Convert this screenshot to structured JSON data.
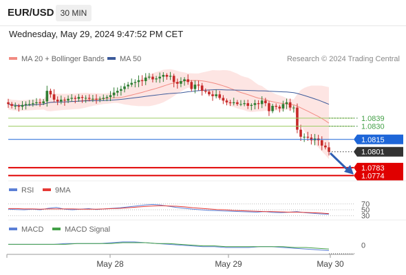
{
  "header": {
    "symbol": "EUR/USD",
    "timeframe": "30 MIN",
    "timestamp": "Wednesday, May 29, 2024 9:47:52 PM CET"
  },
  "price_legend": [
    {
      "label": "MA 20 + Bollinger Bands",
      "color": "#f28b82"
    },
    {
      "label": "MA 50",
      "color": "#3c5a9a"
    }
  ],
  "credit": "Research © 2024 Trading Central",
  "rsi_legend": [
    {
      "label": "RSI",
      "color": "#5b7fd6"
    },
    {
      "label": "9MA",
      "color": "#e53935"
    }
  ],
  "macd_legend": [
    {
      "label": "MACD",
      "color": "#5b7fd6"
    },
    {
      "label": "MACD Signal",
      "color": "#43a047"
    }
  ],
  "chart_data": [
    {
      "type": "candlestick",
      "title": "EUR/USD",
      "x_ticks": [
        "May 28",
        "May 29",
        "May 30"
      ],
      "ylim": [
        1.0772,
        1.0895
      ],
      "ma20_bollinger": "band + midline",
      "ma50": "line",
      "closes": [
        1.0855,
        1.0853,
        1.0853,
        1.0852,
        1.0854,
        1.0855,
        1.0855,
        1.0856,
        1.0857,
        1.0856,
        1.0858,
        1.087,
        1.0866,
        1.086,
        1.0858,
        1.086,
        1.0859,
        1.0861,
        1.0862,
        1.0861,
        1.0863,
        1.0862,
        1.0862,
        1.0861,
        1.0861,
        1.086,
        1.0861,
        1.0862,
        1.0863,
        1.0865,
        1.0868,
        1.087,
        1.0872,
        1.0875,
        1.0877,
        1.0879,
        1.088,
        1.0882,
        1.0881,
        1.0885,
        1.0886,
        1.0883,
        1.0884,
        1.0886,
        1.0888,
        1.0886,
        1.0887,
        1.088,
        1.0878,
        1.0881,
        1.0883,
        1.088,
        1.0872,
        1.0877,
        1.0876,
        1.087,
        1.0869,
        1.0866,
        1.0864,
        1.0866,
        1.0862,
        1.0859,
        1.0857,
        1.0856,
        1.0857,
        1.0855,
        1.0855,
        1.0856,
        1.0853,
        1.0854,
        1.0856,
        1.0855,
        1.0859,
        1.0856,
        1.0847,
        1.0853,
        1.0852,
        1.085,
        1.0855,
        1.0857,
        1.0851,
        1.0851,
        1.0826,
        1.0818,
        1.0818,
        1.0817,
        1.0814,
        1.0816,
        1.0814,
        1.0808,
        1.0806,
        1.0801
      ],
      "price_levels": [
        {
          "value": 1.0839,
          "label": "1.0839",
          "kind": "resistance"
        },
        {
          "value": 1.083,
          "label": "1.0830",
          "kind": "resistance"
        },
        {
          "value": 1.0815,
          "label": "1.0815",
          "kind": "pivot"
        },
        {
          "value": 1.0801,
          "label": "1.0801",
          "kind": "last"
        },
        {
          "value": 1.0783,
          "label": "1.0783",
          "kind": "target"
        },
        {
          "value": 1.0774,
          "label": "1.0774",
          "kind": "target"
        }
      ],
      "projection": "arrow down toward 1.0783"
    },
    {
      "type": "line",
      "title": "RSI",
      "reference_levels": [
        "70",
        "50",
        "30"
      ],
      "ylim": [
        20,
        90
      ],
      "series": [
        {
          "name": "RSI",
          "values": [
            52,
            51,
            50,
            52,
            50,
            55,
            58,
            52,
            50,
            52,
            54,
            51,
            53,
            55,
            57,
            60,
            63,
            66,
            68,
            66,
            62,
            58,
            55,
            52,
            50,
            48,
            47,
            46,
            45,
            44,
            43,
            42,
            44,
            41,
            40,
            42,
            44,
            40,
            38,
            36,
            35
          ]
        },
        {
          "name": "9MA",
          "values": [
            54,
            54,
            53,
            53,
            52,
            53,
            53,
            53,
            53,
            52,
            52,
            52,
            53,
            54,
            55,
            57,
            59,
            61,
            63,
            64,
            63,
            62,
            60,
            57,
            55,
            53,
            51,
            50,
            48,
            47,
            46,
            45,
            44,
            44,
            43,
            42,
            42,
            41,
            40,
            39,
            37
          ]
        }
      ]
    },
    {
      "type": "line",
      "title": "MACD",
      "reference_levels": [
        "0"
      ],
      "ylim": [
        -0.001,
        0.001
      ],
      "series": [
        {
          "name": "MACD",
          "values": [
            0.0001,
            0.0001,
            0.0001,
            0.0001,
            0.0001,
            0.0002,
            0.0002,
            0.0002,
            0.0002,
            0.0003,
            0.0004,
            0.0004,
            0.0003,
            0.0002,
            0.0001,
            0.0,
            -0.0001,
            -0.0002,
            -0.0002,
            -0.0003,
            -0.0003,
            -0.0003,
            -0.0002,
            -0.0002,
            -0.0003,
            -0.0004,
            -0.0005,
            -0.0006,
            -0.0007
          ]
        },
        {
          "name": "MACD Signal",
          "values": [
            0.0001,
            0.0001,
            0.0001,
            0.0001,
            0.0001,
            0.0001,
            0.0002,
            0.0002,
            0.0002,
            0.0002,
            0.0003,
            0.0003,
            0.0003,
            0.0002,
            0.0002,
            0.0001,
            0.0,
            -0.0001,
            -0.0001,
            -0.0002,
            -0.0002,
            -0.0002,
            -0.0002,
            -0.0002,
            -0.0002,
            -0.0003,
            -0.0003,
            -0.0004,
            -0.0005
          ]
        }
      ]
    }
  ]
}
